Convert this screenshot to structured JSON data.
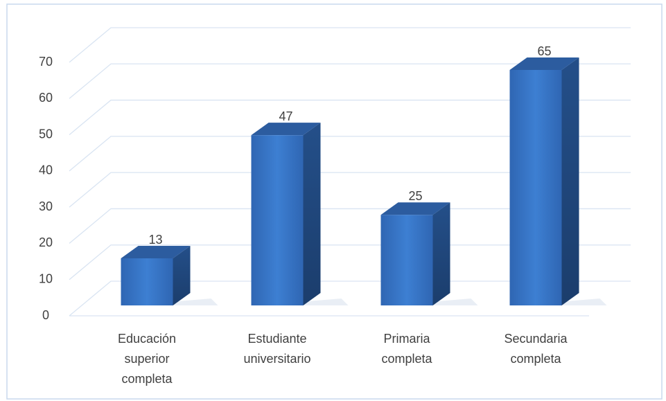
{
  "chart_data": {
    "type": "bar3d",
    "categories": [
      "Educación superior completa",
      "Estudiante universitario",
      "Primaria completa",
      "Secundaria completa"
    ],
    "values": [
      13,
      47,
      25,
      65
    ],
    "color": "#3a78c8",
    "ylim": [
      0,
      70
    ],
    "yticks": [
      0,
      10,
      20,
      30,
      40,
      50,
      60,
      70
    ],
    "grid": true
  }
}
